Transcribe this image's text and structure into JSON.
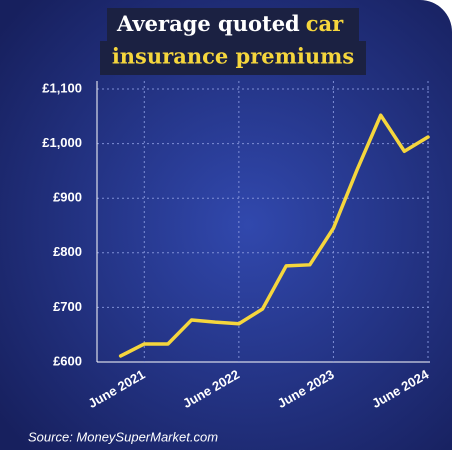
{
  "chart_data": {
    "type": "line",
    "title": {
      "line1": "Average quoted",
      "line1_highlight": "car",
      "line2": "insurance premiums"
    },
    "categories": [
      null,
      "June 2021",
      null,
      null,
      null,
      "June 2022",
      null,
      null,
      null,
      "June 2023",
      null,
      null,
      null,
      "June 2024"
    ],
    "series": [
      {
        "name": "Average quoted premium",
        "color": "#f5d63d",
        "values": [
          611,
          633,
          633,
          677,
          673,
          670,
          697,
          776,
          778,
          845,
          952,
          1052,
          986,
          1012
        ]
      }
    ],
    "ylim": [
      600,
      1100
    ],
    "yticks": [
      {
        "value": 600,
        "label": "£600"
      },
      {
        "value": 700,
        "label": "£700"
      },
      {
        "value": 800,
        "label": "£800"
      },
      {
        "value": 900,
        "label": "£900"
      },
      {
        "value": 1000,
        "label": "£1,000"
      },
      {
        "value": 1100,
        "label": "£1,100"
      }
    ],
    "grid": true,
    "source": "Source: MoneySuperMarket.com"
  }
}
